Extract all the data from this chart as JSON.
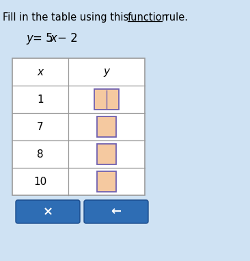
{
  "title_prefix": "Fill in the table using this ",
  "title_underlined": "function",
  "title_suffix": " rule.",
  "equation_parts": [
    "y",
    "=5",
    "x",
    "−2"
  ],
  "x_values": [
    1,
    7,
    8,
    10
  ],
  "bg_color": "#cfe2f3",
  "table_bg": "#ffffff",
  "header_x": "x",
  "header_y": "y",
  "input_box_fill": "#f5c9a0",
  "input_box_border": "#7060b0",
  "button_color": "#2e6db4",
  "button_x_text": "×",
  "button_arrow_text": "←",
  "title_fontsize": 10.5,
  "eq_fontsize": 12,
  "table_fontsize": 11
}
